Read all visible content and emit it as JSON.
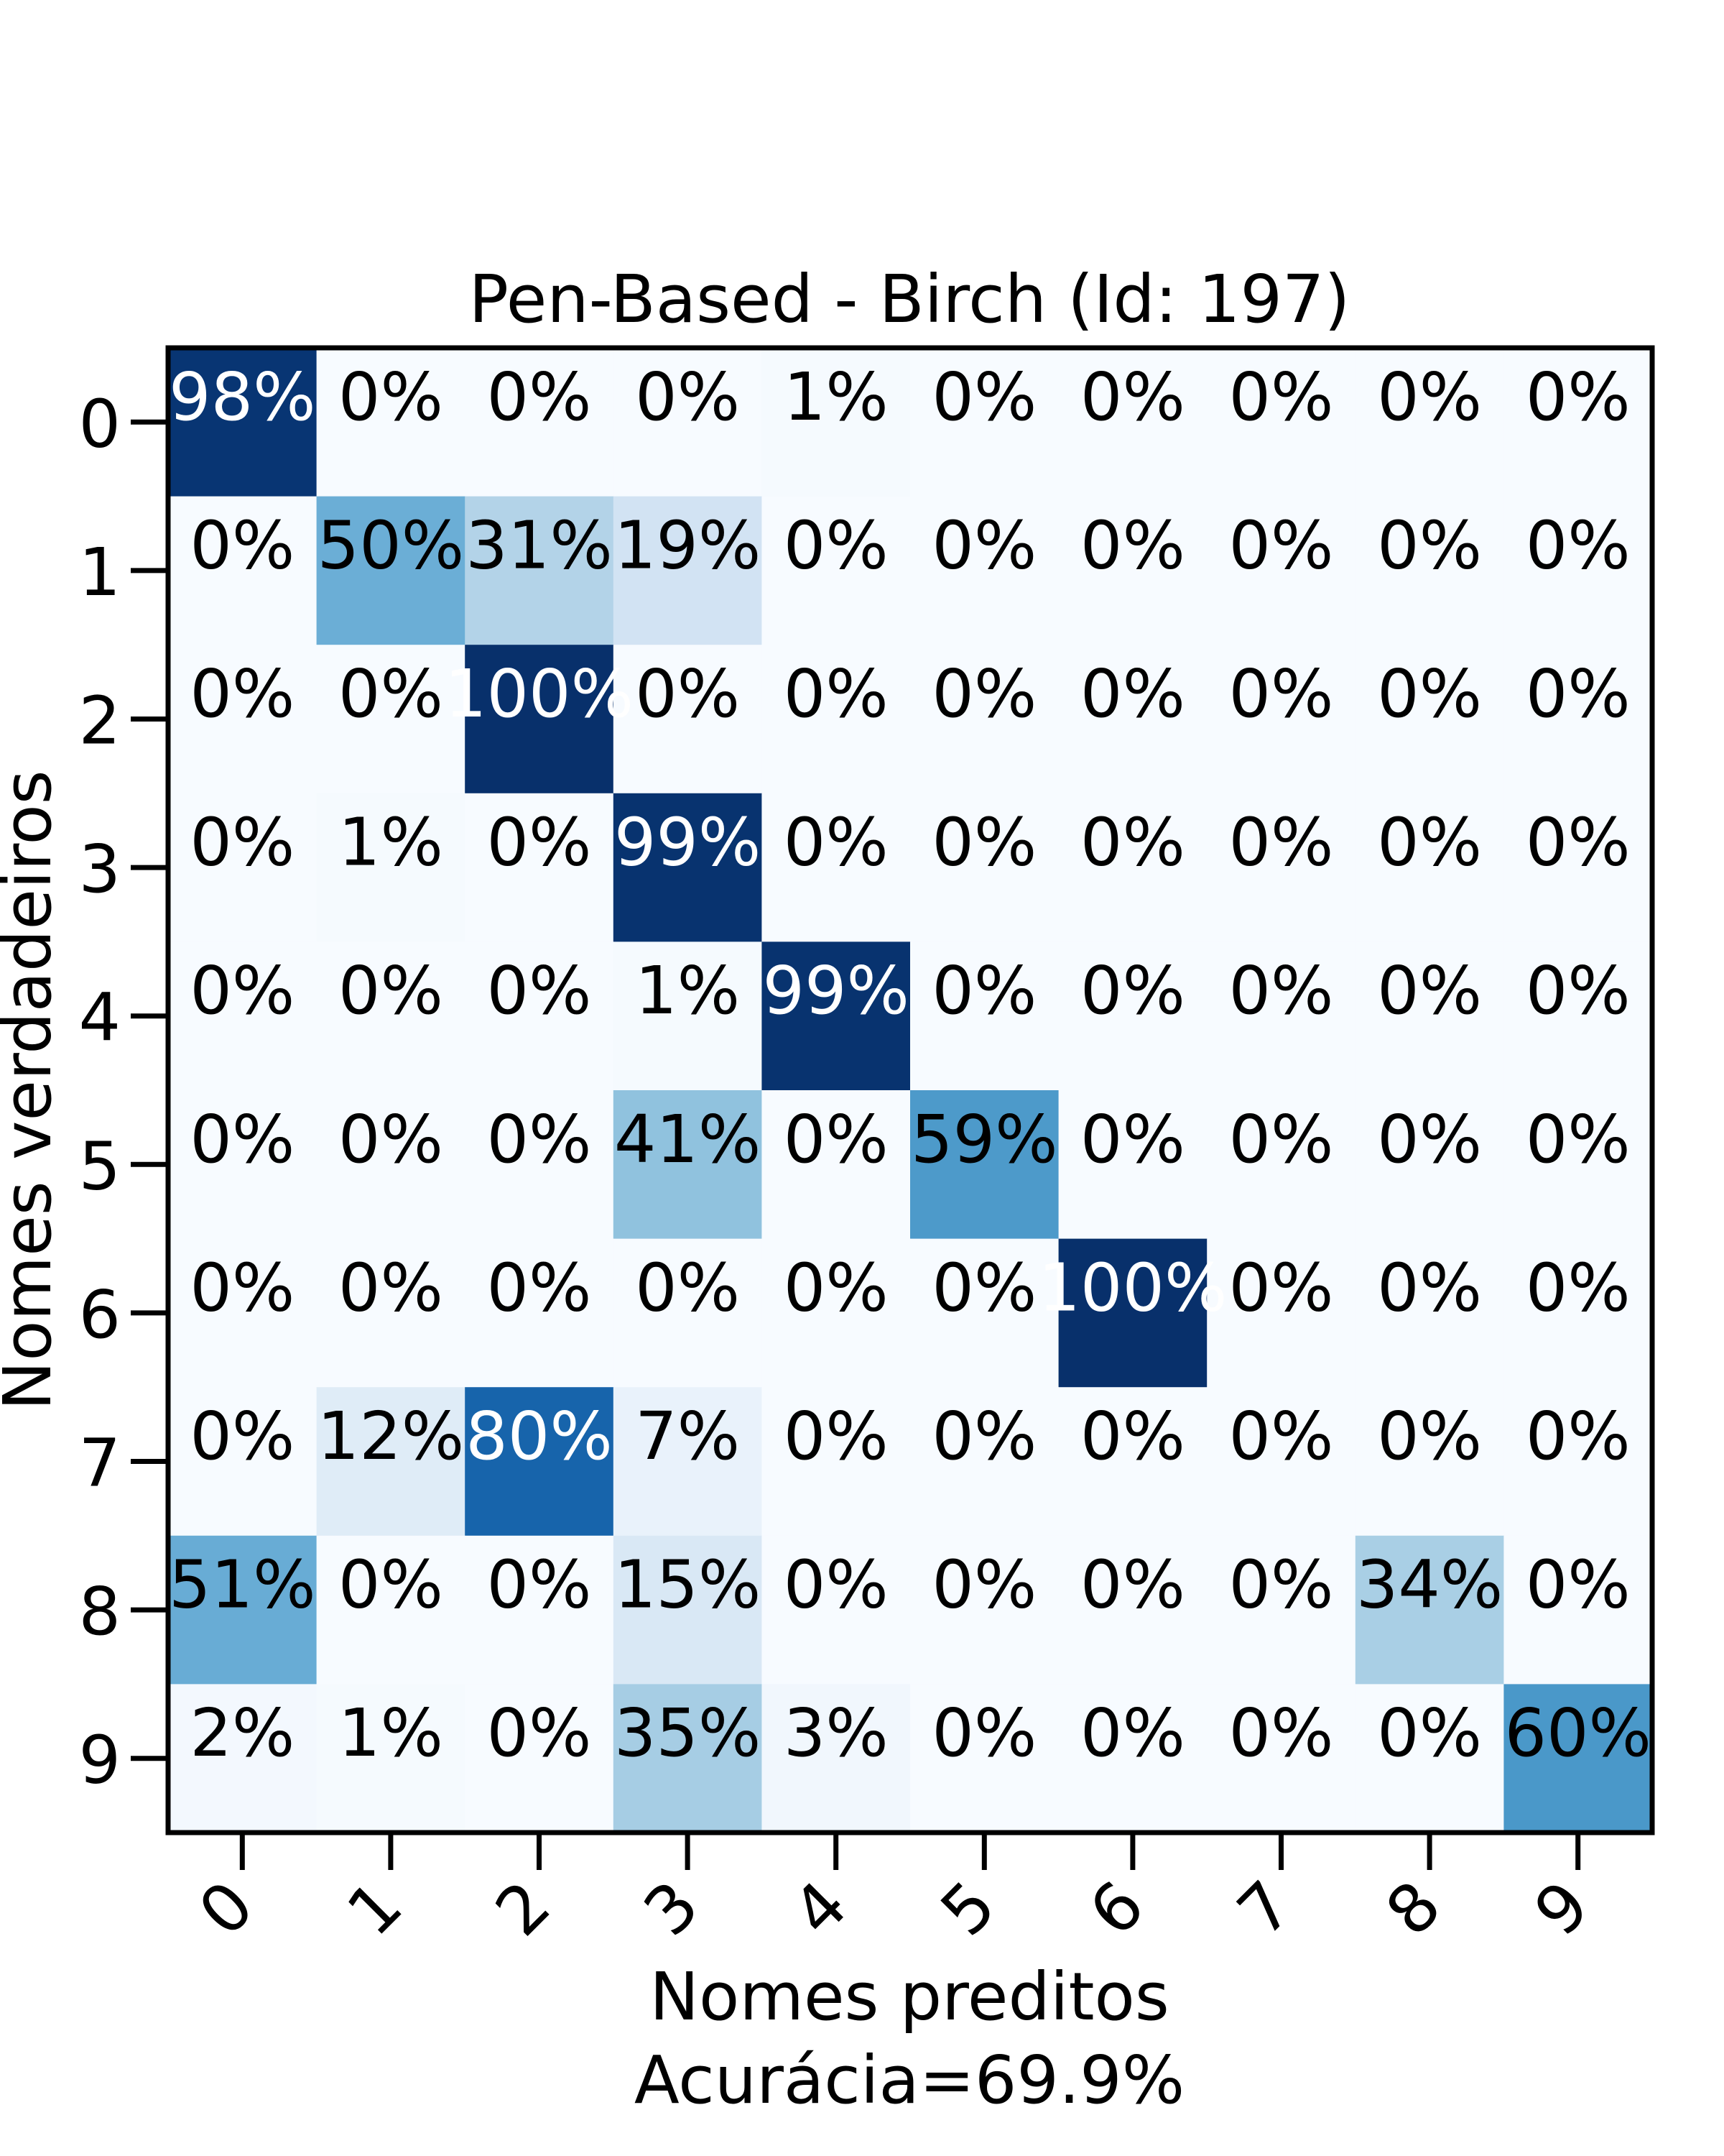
{
  "chart_data": {
    "type": "heatmap",
    "title": "Pen-Based - Birch (Id: 197)",
    "xlabel": "Nomes preditos",
    "subtitle_below_xlabel": "Acurácia=69.9%",
    "ylabel": "Nomes verdadeiros",
    "x_categories": [
      "0",
      "1",
      "2",
      "3",
      "4",
      "5",
      "6",
      "7",
      "8",
      "9"
    ],
    "y_categories": [
      "0",
      "1",
      "2",
      "3",
      "4",
      "5",
      "6",
      "7",
      "8",
      "9"
    ],
    "value_format": "percent",
    "colormap": "Blues",
    "values": [
      [
        98,
        0,
        0,
        0,
        1,
        0,
        0,
        0,
        0,
        0
      ],
      [
        0,
        50,
        31,
        19,
        0,
        0,
        0,
        0,
        0,
        0
      ],
      [
        0,
        0,
        100,
        0,
        0,
        0,
        0,
        0,
        0,
        0
      ],
      [
        0,
        1,
        0,
        99,
        0,
        0,
        0,
        0,
        0,
        0
      ],
      [
        0,
        0,
        0,
        1,
        99,
        0,
        0,
        0,
        0,
        0
      ],
      [
        0,
        0,
        0,
        41,
        0,
        59,
        0,
        0,
        0,
        0
      ],
      [
        0,
        0,
        0,
        0,
        0,
        0,
        100,
        0,
        0,
        0
      ],
      [
        0,
        12,
        80,
        7,
        0,
        0,
        0,
        0,
        0,
        0
      ],
      [
        51,
        0,
        0,
        15,
        0,
        0,
        0,
        0,
        34,
        0
      ],
      [
        2,
        1,
        0,
        35,
        3,
        0,
        0,
        0,
        0,
        60
      ]
    ],
    "colors": {
      "low": "#f7fbff",
      "high": "#08306b",
      "text_dark": "#000000",
      "text_light": "#ffffff",
      "frame": "#000000"
    }
  }
}
